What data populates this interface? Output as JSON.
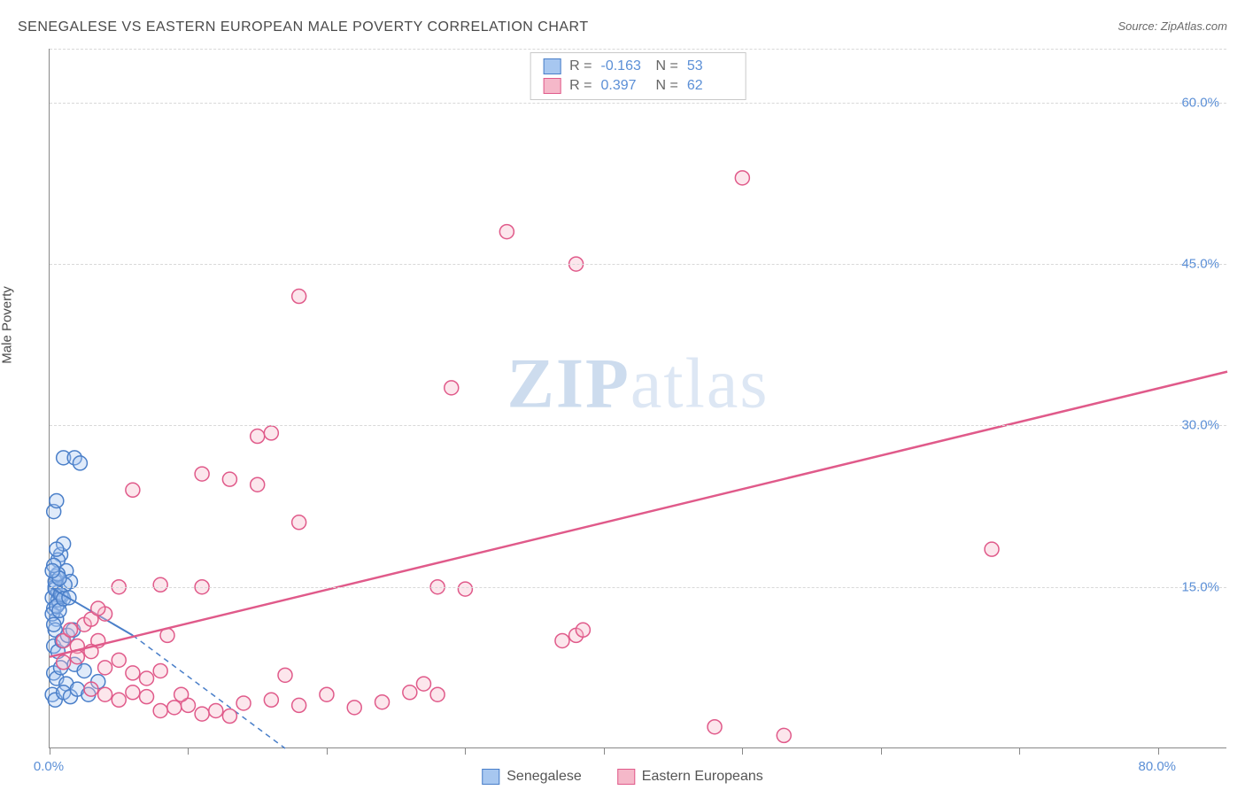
{
  "title": "SENEGALESE VS EASTERN EUROPEAN MALE POVERTY CORRELATION CHART",
  "source_label": "Source: ",
  "source_name": "ZipAtlas.com",
  "y_axis_label": "Male Poverty",
  "watermark_part1": "ZIP",
  "watermark_part2": "atlas",
  "chart": {
    "type": "scatter",
    "background_color": "#ffffff",
    "grid_color": "#d8d8d8",
    "axis_color": "#888888",
    "xlim": [
      0,
      85
    ],
    "ylim": [
      0,
      65
    ],
    "x_ticks": [
      0,
      10,
      20,
      30,
      40,
      50,
      60,
      70,
      80
    ],
    "x_tick_labels_shown": {
      "0": "0.0%",
      "80": "80.0%"
    },
    "y_gridlines": [
      15,
      30,
      45,
      60,
      65
    ],
    "y_tick_labels": {
      "15": "15.0%",
      "30": "30.0%",
      "45": "45.0%",
      "60": "60.0%"
    },
    "x_label_color": "#5b8fd6",
    "y_label_color": "#5b8fd6",
    "label_fontsize": 15,
    "marker_radius": 8,
    "marker_stroke_width": 1.5,
    "marker_fill_opacity": 0.35,
    "series": [
      {
        "name": "Senegalese",
        "color_fill": "#a7c7f0",
        "color_stroke": "#4a7fc9",
        "R": "-0.163",
        "N": "53",
        "trend_line": {
          "x1": 0,
          "y1": 15.0,
          "x2": 6,
          "y2": 10.5,
          "dash_ext_x2": 17,
          "dash_ext_y2": 0,
          "stroke_width": 2
        },
        "points": [
          [
            0.2,
            14
          ],
          [
            0.3,
            13
          ],
          [
            0.4,
            15
          ],
          [
            0.5,
            16
          ],
          [
            0.5,
            12
          ],
          [
            0.6,
            14.5
          ],
          [
            0.7,
            13.5
          ],
          [
            0.4,
            11
          ],
          [
            0.8,
            18
          ],
          [
            0.3,
            22
          ],
          [
            0.5,
            23
          ],
          [
            1.0,
            27
          ],
          [
            1.8,
            27
          ],
          [
            2.2,
            26.5
          ],
          [
            0.6,
            17.5
          ],
          [
            1.0,
            19
          ],
          [
            1.2,
            16.5
          ],
          [
            1.5,
            15.5
          ],
          [
            0.3,
            7
          ],
          [
            0.5,
            6.5
          ],
          [
            0.8,
            7.5
          ],
          [
            1.2,
            6
          ],
          [
            1.8,
            7.8
          ],
          [
            2.5,
            7.2
          ],
          [
            0.2,
            5
          ],
          [
            0.4,
            4.5
          ],
          [
            1.0,
            5.2
          ],
          [
            1.5,
            4.8
          ],
          [
            2.0,
            5.5
          ],
          [
            2.8,
            5.0
          ],
          [
            3.5,
            6.2
          ],
          [
            0.4,
            14.8
          ],
          [
            0.6,
            13.8
          ],
          [
            0.9,
            14.2
          ],
          [
            1.1,
            15.2
          ],
          [
            0.2,
            12.5
          ],
          [
            0.3,
            11.5
          ],
          [
            0.5,
            13.2
          ],
          [
            0.7,
            12.8
          ],
          [
            0.3,
            9.5
          ],
          [
            0.6,
            9
          ],
          [
            0.9,
            10
          ],
          [
            1.3,
            10.5
          ],
          [
            1.7,
            11
          ],
          [
            0.4,
            15.5
          ],
          [
            0.6,
            16.2
          ],
          [
            0.8,
            14.3
          ],
          [
            1.0,
            13.9
          ],
          [
            0.3,
            17
          ],
          [
            0.5,
            18.5
          ],
          [
            0.7,
            15.8
          ],
          [
            0.2,
            16.5
          ],
          [
            1.4,
            14
          ]
        ]
      },
      {
        "name": "Eastern Europeans",
        "color_fill": "#f5b8c9",
        "color_stroke": "#e05a8a",
        "R": "0.397",
        "N": "62",
        "trend_line": {
          "x1": 0,
          "y1": 8.5,
          "x2": 85,
          "y2": 35,
          "stroke_width": 2.5
        },
        "points": [
          [
            1,
            10
          ],
          [
            1.5,
            11
          ],
          [
            2,
            9.5
          ],
          [
            2.5,
            11.5
          ],
          [
            3,
            12
          ],
          [
            3.5,
            10
          ],
          [
            4,
            12.5
          ],
          [
            1,
            8
          ],
          [
            2,
            8.5
          ],
          [
            3,
            9
          ],
          [
            4,
            7.5
          ],
          [
            5,
            8.2
          ],
          [
            6,
            7
          ],
          [
            7,
            6.5
          ],
          [
            8,
            7.2
          ],
          [
            3,
            5.5
          ],
          [
            4,
            5
          ],
          [
            5,
            4.5
          ],
          [
            6,
            5.2
          ],
          [
            7,
            4.8
          ],
          [
            8,
            3.5
          ],
          [
            9,
            3.8
          ],
          [
            10,
            4
          ],
          [
            11,
            3.2
          ],
          [
            12,
            3.5
          ],
          [
            14,
            4.2
          ],
          [
            16,
            4.5
          ],
          [
            18,
            4
          ],
          [
            20,
            5
          ],
          [
            22,
            3.8
          ],
          [
            24,
            4.3
          ],
          [
            26,
            5.2
          ],
          [
            5,
            15
          ],
          [
            8,
            15.2
          ],
          [
            11,
            15
          ],
          [
            6,
            24
          ],
          [
            13,
            25
          ],
          [
            15,
            24.5
          ],
          [
            18,
            21
          ],
          [
            15,
            29
          ],
          [
            16,
            29.3
          ],
          [
            18,
            42
          ],
          [
            29,
            33.5
          ],
          [
            30,
            14.8
          ],
          [
            28,
            15
          ],
          [
            33,
            48
          ],
          [
            38,
            45
          ],
          [
            37,
            10
          ],
          [
            38,
            10.5
          ],
          [
            38.5,
            11
          ],
          [
            48,
            2
          ],
          [
            50,
            53
          ],
          [
            53,
            1.2
          ],
          [
            68,
            18.5
          ],
          [
            8.5,
            10.5
          ],
          [
            11,
            25.5
          ],
          [
            27,
            6
          ],
          [
            28,
            5
          ],
          [
            9.5,
            5
          ],
          [
            13,
            3
          ],
          [
            17,
            6.8
          ],
          [
            3.5,
            13
          ]
        ]
      }
    ]
  },
  "legend_top_R_label": "R =",
  "legend_top_N_label": "N =",
  "legend_bottom": {
    "items": [
      "Senegalese",
      "Eastern Europeans"
    ]
  }
}
